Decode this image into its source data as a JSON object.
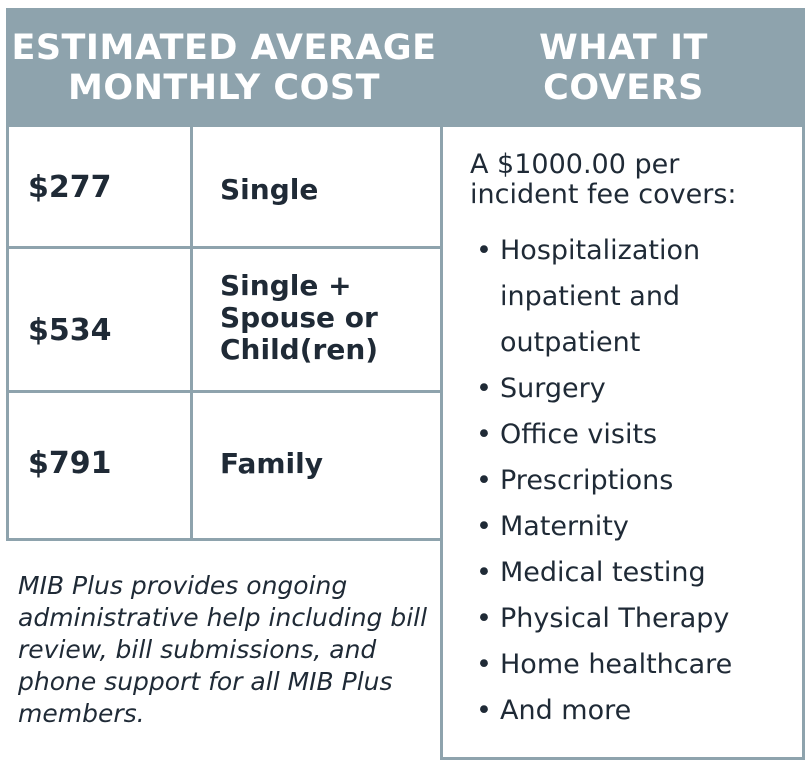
{
  "header": {
    "left_title_line1": "ESTIMATED AVERAGE",
    "left_title_line2": "MONTHLY COST",
    "right_title_line1": "WHAT IT",
    "right_title_line2": "COVERS"
  },
  "rows": [
    {
      "price": "$277",
      "tier_lines": [
        "Single"
      ]
    },
    {
      "price": "$534",
      "tier_lines": [
        "Single +",
        "Spouse or",
        "Child(ren)"
      ]
    },
    {
      "price": "$791",
      "tier_lines": [
        "Family"
      ]
    }
  ],
  "note": "MIB Plus provides ongoing administrative help including bill review, bill submissions, and phone support for all MIB Plus members.",
  "covers": {
    "intro_line1": "A $1000.00 per",
    "intro_line2": "incident fee covers:",
    "items": [
      {
        "line1": "Hospitalization",
        "line2": "inpatient and",
        "line3": "outpatient"
      },
      {
        "line1": "Surgery"
      },
      {
        "line1": "Office visits"
      },
      {
        "line1": "Prescriptions"
      },
      {
        "line1": "Maternity"
      },
      {
        "line1": "Medical testing"
      },
      {
        "line1": "Physical Therapy"
      },
      {
        "line1": "Home healthcare"
      },
      {
        "line1": "And more"
      }
    ]
  },
  "colors": {
    "header_bg": "#8ea3ad",
    "grid_line": "#8ea3ad",
    "text": "#1f2a36"
  }
}
